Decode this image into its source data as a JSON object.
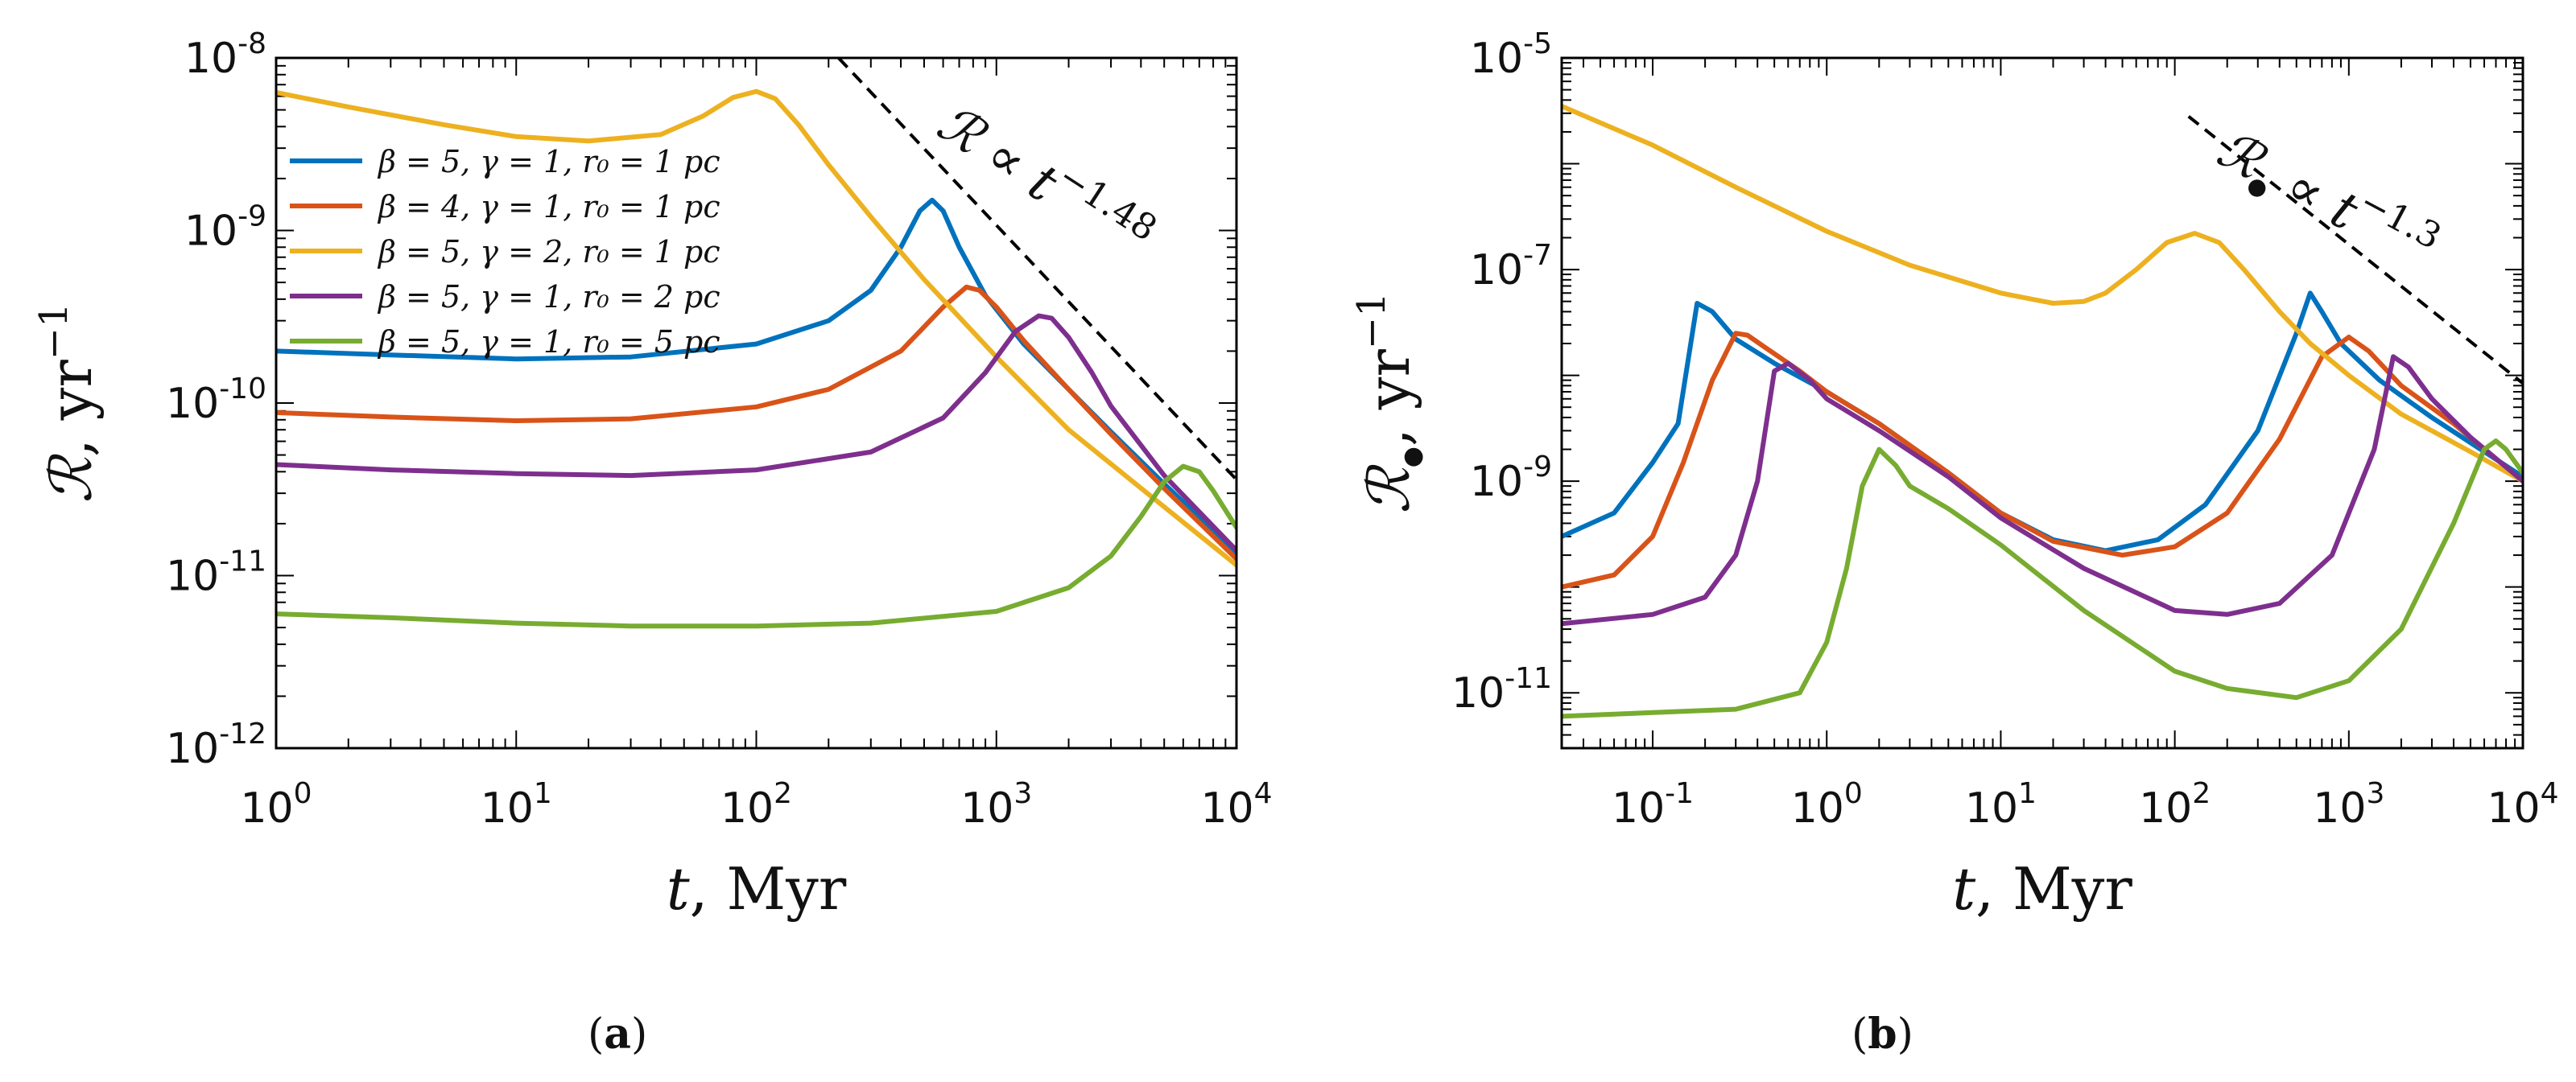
{
  "colors": {
    "blue": "#0072BD",
    "orange": "#D95319",
    "yellow": "#EDB120",
    "purple": "#7E2F8E",
    "green": "#77AC30",
    "axis": "#000000"
  },
  "captions": {
    "a_open": "(",
    "a_letter": "a",
    "a_close": ")",
    "b_open": "(",
    "b_letter": "b",
    "b_close": ")"
  },
  "chart_data": [
    {
      "type": "line",
      "panel": "a",
      "xscale": "log",
      "yscale": "log",
      "xlim": [
        1,
        10000
      ],
      "ylim": [
        1e-12,
        1e-08
      ],
      "xlabel_var": "t",
      "xlabel_unit": ", Myr",
      "ylabel_var": "ℛ",
      "ylabel_unit": ", yr",
      "ylabel_exp": "−1",
      "xticks": [
        {
          "v": 1,
          "base": "10",
          "exp": "0"
        },
        {
          "v": 10,
          "base": "10",
          "exp": "1"
        },
        {
          "v": 100,
          "base": "10",
          "exp": "2"
        },
        {
          "v": 1000,
          "base": "10",
          "exp": "3"
        },
        {
          "v": 10000,
          "base": "10",
          "exp": "4"
        }
      ],
      "yticks": [
        {
          "v": 1e-12,
          "base": "10",
          "exp": "-12"
        },
        {
          "v": 1e-11,
          "base": "10",
          "exp": "-11"
        },
        {
          "v": 1e-10,
          "base": "10",
          "exp": "-10"
        },
        {
          "v": 1e-09,
          "base": "10",
          "exp": "-9"
        },
        {
          "v": 1e-08,
          "base": "10",
          "exp": "-8"
        }
      ],
      "legend_position": "top-left",
      "annotation": {
        "lhs": "ℛ",
        "rel": " ∝ ",
        "var": "t",
        "exp": "−1.48"
      },
      "reference_line": {
        "x": [
          220,
          10000
        ],
        "y": [
          1e-08,
          3.6e-11
        ]
      },
      "series": [
        {
          "name": "β = 5, γ = 1, r₀ = 1 pc",
          "color": "#0072BD",
          "x": [
            1,
            3,
            10,
            30,
            100,
            200,
            300,
            400,
            480,
            540,
            600,
            700,
            900,
            1300,
            2000,
            3000,
            5000,
            10000
          ],
          "y": [
            2e-10,
            1.9e-10,
            1.8e-10,
            1.85e-10,
            2.2e-10,
            3e-10,
            4.5e-10,
            8e-10,
            1.3e-09,
            1.5e-09,
            1.3e-09,
            8e-10,
            4.2e-10,
            2.2e-10,
            1.2e-10,
            6.8e-11,
            3.4e-11,
            1.35e-11
          ]
        },
        {
          "name": "β = 4, γ = 1, r₀ = 1 pc",
          "color": "#D95319",
          "x": [
            1,
            3,
            10,
            30,
            100,
            200,
            400,
            600,
            750,
            850,
            1000,
            1300,
            2000,
            3000,
            5000,
            10000
          ],
          "y": [
            8.8e-11,
            8.3e-11,
            7.9e-11,
            8.1e-11,
            9.5e-11,
            1.2e-10,
            2e-10,
            3.6e-10,
            4.7e-10,
            4.5e-10,
            3.6e-10,
            2.3e-10,
            1.2e-10,
            6.6e-11,
            3.2e-11,
            1.25e-11
          ]
        },
        {
          "name": "β = 5, γ = 2, r₀ = 1 pc",
          "color": "#EDB120",
          "x": [
            1,
            2,
            5,
            10,
            20,
            40,
            60,
            80,
            100,
            120,
            150,
            200,
            300,
            500,
            1000,
            2000,
            5000,
            10000
          ],
          "y": [
            6.3e-09,
            5.2e-09,
            4.1e-09,
            3.5e-09,
            3.3e-09,
            3.6e-09,
            4.6e-09,
            5.9e-09,
            6.4e-09,
            5.8e-09,
            4.1e-09,
            2.4e-09,
            1.2e-09,
            5.2e-10,
            1.85e-10,
            7e-11,
            2.5e-11,
            1.15e-11
          ]
        },
        {
          "name": "β = 5, γ = 1, r₀ = 2 pc",
          "color": "#7E2F8E",
          "x": [
            1,
            3,
            10,
            30,
            100,
            300,
            600,
            900,
            1200,
            1500,
            1700,
            2000,
            2500,
            3000,
            5000,
            10000
          ],
          "y": [
            4.4e-11,
            4.1e-11,
            3.9e-11,
            3.8e-11,
            4.1e-11,
            5.2e-11,
            8.2e-11,
            1.5e-10,
            2.6e-10,
            3.2e-10,
            3.1e-10,
            2.4e-10,
            1.5e-10,
            9.6e-11,
            3.8e-11,
            1.4e-11
          ]
        },
        {
          "name": "β = 5, γ = 1, r₀ = 5 pc",
          "color": "#77AC30",
          "x": [
            1,
            3,
            10,
            30,
            100,
            300,
            1000,
            2000,
            3000,
            4000,
            5000,
            6000,
            7000,
            8000,
            10000
          ],
          "y": [
            6e-12,
            5.7e-12,
            5.3e-12,
            5.1e-12,
            5.1e-12,
            5.3e-12,
            6.2e-12,
            8.5e-12,
            1.3e-11,
            2.2e-11,
            3.5e-11,
            4.3e-11,
            4e-11,
            3.1e-11,
            1.9e-11
          ]
        }
      ]
    },
    {
      "type": "line",
      "panel": "b",
      "xscale": "log",
      "yscale": "log",
      "xlim": [
        0.03,
        10000
      ],
      "ylim": [
        3e-12,
        1e-05
      ],
      "xlabel_var": "t",
      "xlabel_unit": ", Myr",
      "ylabel_var": "ℛ",
      "ylabel_sub": "●",
      "ylabel_unit": ", yr",
      "ylabel_exp": "−1",
      "xticks": [
        {
          "v": 0.1,
          "base": "10",
          "exp": "-1"
        },
        {
          "v": 1,
          "base": "10",
          "exp": "0"
        },
        {
          "v": 10,
          "base": "10",
          "exp": "1"
        },
        {
          "v": 100,
          "base": "10",
          "exp": "2"
        },
        {
          "v": 1000,
          "base": "10",
          "exp": "3"
        },
        {
          "v": 10000,
          "base": "10",
          "exp": "4"
        }
      ],
      "yticks": [
        {
          "v": 1e-11,
          "base": "10",
          "exp": "-11"
        },
        {
          "v": 1e-09,
          "base": "10",
          "exp": "-9"
        },
        {
          "v": 1e-07,
          "base": "10",
          "exp": "-7"
        },
        {
          "v": 1e-05,
          "base": "10",
          "exp": "-5"
        }
      ],
      "annotation": {
        "lhs": "ℛ",
        "sub": "●",
        "rel": " ∝ ",
        "var": "t",
        "exp": "−1.3"
      },
      "reference_line": {
        "x": [
          120,
          10000
        ],
        "y": [
          2.8e-06,
          8.4e-09
        ]
      },
      "series": [
        {
          "name": "β = 5, γ = 1, r₀ = 1 pc",
          "color": "#0072BD",
          "x": [
            0.03,
            0.06,
            0.1,
            0.14,
            0.18,
            0.22,
            0.3,
            0.5,
            1,
            2,
            5,
            10,
            20,
            40,
            80,
            150,
            300,
            500,
            600,
            700,
            900,
            1500,
            3000,
            10000
          ],
          "y": [
            3e-10,
            5e-10,
            1.5e-09,
            3.5e-09,
            4.8e-08,
            4e-08,
            2.2e-08,
            1.3e-08,
            7e-09,
            3.5e-09,
            1.2e-09,
            5e-10,
            2.8e-10,
            2.2e-10,
            2.8e-10,
            6e-10,
            3e-09,
            2.5e-08,
            6e-08,
            4e-08,
            2e-08,
            9e-09,
            4e-09,
            1.1e-09
          ]
        },
        {
          "name": "β = 4, γ = 1, r₀ = 1 pc",
          "color": "#D95319",
          "x": [
            0.03,
            0.06,
            0.1,
            0.15,
            0.22,
            0.3,
            0.35,
            0.45,
            0.7,
            1,
            2,
            5,
            10,
            20,
            50,
            100,
            200,
            400,
            700,
            1000,
            1300,
            2000,
            4000,
            10000
          ],
          "y": [
            1e-10,
            1.3e-10,
            3e-10,
            1.5e-09,
            9e-09,
            2.5e-08,
            2.4e-08,
            1.8e-08,
            1.1e-08,
            7e-09,
            3.5e-09,
            1.2e-09,
            5e-10,
            2.7e-10,
            2e-10,
            2.4e-10,
            5e-10,
            2.5e-09,
            1.5e-08,
            2.3e-08,
            1.7e-08,
            8e-09,
            3.5e-09,
            1e-09
          ]
        },
        {
          "name": "β = 5, γ = 2, r₀ = 1 pc",
          "color": "#EDB120",
          "x": [
            0.03,
            0.1,
            0.3,
            1,
            3,
            10,
            20,
            30,
            40,
            60,
            90,
            130,
            180,
            250,
            400,
            600,
            1000,
            2000,
            5000,
            10000
          ],
          "y": [
            3.5e-06,
            1.5e-06,
            6e-07,
            2.3e-07,
            1.1e-07,
            6e-08,
            4.8e-08,
            5e-08,
            6e-08,
            1e-07,
            1.8e-07,
            2.2e-07,
            1.8e-07,
            1e-07,
            4e-08,
            2e-08,
            1e-08,
            4.3e-09,
            1.9e-09,
            1e-09
          ]
        },
        {
          "name": "β = 5, γ = 1, r₀ = 2 pc",
          "color": "#7E2F8E",
          "x": [
            0.03,
            0.1,
            0.2,
            0.3,
            0.4,
            0.5,
            0.6,
            0.8,
            1,
            2,
            5,
            10,
            30,
            100,
            200,
            400,
            800,
            1400,
            1800,
            2200,
            3000,
            5000,
            10000
          ],
          "y": [
            4.5e-11,
            5.5e-11,
            8e-11,
            2e-10,
            1e-09,
            1.1e-08,
            1.3e-08,
            9e-09,
            6e-09,
            3e-09,
            1.1e-09,
            4.5e-10,
            1.5e-10,
            6e-11,
            5.5e-11,
            7e-11,
            2e-10,
            2e-09,
            1.5e-08,
            1.2e-08,
            6e-09,
            2.6e-09,
            1e-09
          ]
        },
        {
          "name": "β = 5, γ = 1, r₀ = 5 pc",
          "color": "#77AC30",
          "x": [
            0.03,
            0.1,
            0.3,
            0.7,
            1,
            1.3,
            1.6,
            2,
            2.5,
            3,
            5,
            10,
            30,
            100,
            200,
            500,
            1000,
            2000,
            4000,
            6000,
            7000,
            8000,
            10000
          ],
          "y": [
            6e-12,
            6.5e-12,
            7e-12,
            1e-11,
            3e-11,
            1.5e-10,
            9e-10,
            2e-09,
            1.4e-09,
            9e-10,
            5.5e-10,
            2.5e-10,
            6e-11,
            1.6e-11,
            1.1e-11,
            9e-12,
            1.3e-11,
            4e-11,
            4e-10,
            2e-09,
            2.4e-09,
            2e-09,
            1.2e-09
          ]
        }
      ]
    }
  ]
}
